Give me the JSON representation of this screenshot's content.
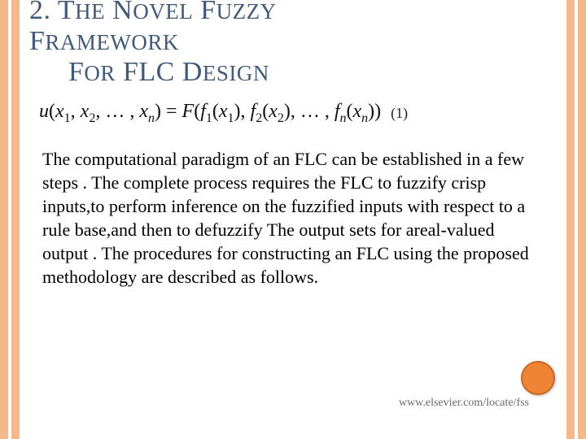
{
  "colors": {
    "stripe": "#f4b88a",
    "title": "#415a7a",
    "circle_fill": "#ee8434",
    "circle_border": "#c96a24",
    "footer": "#6a6a6a"
  },
  "title": {
    "line1_caps": "2. T",
    "line1_small": "HE",
    "line1_caps2": " N",
    "line1_small2": "OVEL",
    "line1_caps3": " F",
    "line1_small3": "UZZY",
    "line2_caps": "F",
    "line2_small": "RAMEWORK",
    "line3_caps": "F",
    "line3_small": "OR",
    "line3_caps2": " FLC D",
    "line3_small2": "ESIGN"
  },
  "equation": {
    "lhs_u": "u",
    "lhs_open": "(",
    "x": "x",
    "sub1": "1",
    "comma": ", ",
    "sub2": "2",
    "ellipsis": ", … , ",
    "subn": "n",
    "close": ")",
    "eq": " = ",
    "F": "F",
    "f": "f",
    "number": "(1)"
  },
  "body": "The computational paradigm of an FLC can be established in a few steps . The complete process requires the FLC to fuzzify crisp inputs,to perform inference on the fuzzified inputs with respect to a rule base,and then to defuzzify The  output sets for areal-valued output . The procedures for constructing an FLC using the proposed methodology are described as follows.",
  "footer_url": "www.elsevier.com/locate/fss"
}
